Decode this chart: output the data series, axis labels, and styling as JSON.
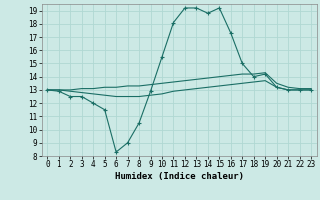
{
  "xlabel": "Humidex (Indice chaleur)",
  "xlim": [
    -0.5,
    23.5
  ],
  "ylim": [
    8,
    19.5
  ],
  "yticks": [
    8,
    9,
    10,
    11,
    12,
    13,
    14,
    15,
    16,
    17,
    18,
    19
  ],
  "xticks": [
    0,
    1,
    2,
    3,
    4,
    5,
    6,
    7,
    8,
    9,
    10,
    11,
    12,
    13,
    14,
    15,
    16,
    17,
    18,
    19,
    20,
    21,
    22,
    23
  ],
  "bg_color": "#cce9e5",
  "line_color": "#1a6e65",
  "grid_color": "#b0d8d3",
  "line1_x": [
    0,
    1,
    2,
    3,
    4,
    5,
    6,
    7,
    8,
    9,
    10,
    11,
    12,
    13,
    14,
    15,
    16,
    17,
    18,
    19,
    20,
    21,
    22,
    23
  ],
  "line1_y": [
    13.0,
    12.9,
    12.5,
    12.5,
    12.0,
    11.5,
    8.3,
    9.0,
    10.5,
    12.9,
    15.5,
    18.1,
    19.2,
    19.2,
    18.8,
    19.2,
    17.3,
    15.0,
    14.0,
    14.2,
    13.2,
    13.0,
    13.0,
    13.0
  ],
  "line2_x": [
    0,
    1,
    2,
    3,
    4,
    5,
    6,
    7,
    8,
    9,
    10,
    11,
    12,
    13,
    14,
    15,
    16,
    17,
    18,
    19,
    20,
    21,
    22,
    23
  ],
  "line2_y": [
    13.0,
    13.0,
    13.0,
    13.1,
    13.1,
    13.2,
    13.2,
    13.3,
    13.3,
    13.4,
    13.5,
    13.6,
    13.7,
    13.8,
    13.9,
    14.0,
    14.1,
    14.2,
    14.2,
    14.3,
    13.5,
    13.2,
    13.1,
    13.1
  ],
  "line3_x": [
    0,
    1,
    2,
    3,
    4,
    5,
    6,
    7,
    8,
    9,
    10,
    11,
    12,
    13,
    14,
    15,
    16,
    17,
    18,
    19,
    20,
    21,
    22,
    23
  ],
  "line3_y": [
    13.0,
    13.0,
    12.9,
    12.8,
    12.7,
    12.6,
    12.5,
    12.5,
    12.5,
    12.6,
    12.7,
    12.9,
    13.0,
    13.1,
    13.2,
    13.3,
    13.4,
    13.5,
    13.6,
    13.7,
    13.2,
    13.0,
    13.0,
    13.0
  ]
}
